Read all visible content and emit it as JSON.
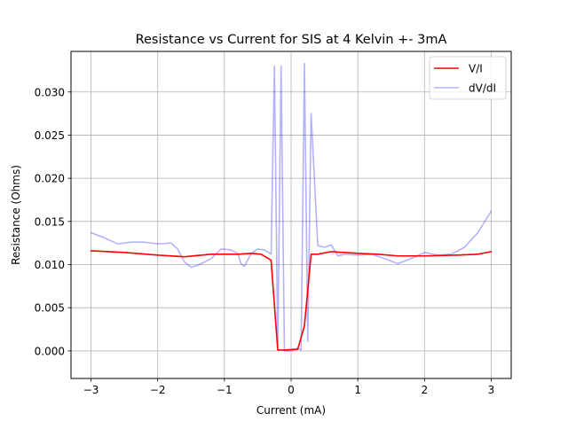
{
  "chart_data": {
    "type": "line",
    "title": "Resistance vs Current for SIS at 4 Kelvin +- 3mA",
    "xlabel": "Current (mA)",
    "ylabel": "Resistance (Ohms)",
    "xlim": [
      -3.3,
      3.3
    ],
    "ylim": [
      -0.0032,
      0.0347
    ],
    "xticks": [
      -3,
      -2,
      -1,
      0,
      1,
      2,
      3
    ],
    "xtick_labels": [
      "−3",
      "−2",
      "−1",
      "0",
      "1",
      "2",
      "3"
    ],
    "yticks": [
      0.0,
      0.005,
      0.01,
      0.015,
      0.02,
      0.025,
      0.03
    ],
    "ytick_labels": [
      "0.000",
      "0.005",
      "0.010",
      "0.015",
      "0.020",
      "0.025",
      "0.030"
    ],
    "grid": true,
    "legend_position": "top-right",
    "series": [
      {
        "name": "V/I",
        "color": "#ff0000",
        "alpha": 1.0,
        "x": [
          -3.0,
          -2.5,
          -2.0,
          -1.6,
          -1.2,
          -0.8,
          -0.6,
          -0.45,
          -0.3,
          -0.2,
          -0.1,
          0.1,
          0.2,
          0.3,
          0.4,
          0.6,
          0.8,
          1.0,
          1.3,
          1.6,
          2.0,
          2.5,
          2.8,
          3.0
        ],
        "y": [
          0.0116,
          0.0114,
          0.0111,
          0.0109,
          0.0112,
          0.0112,
          0.0113,
          0.0112,
          0.0105,
          0.0001,
          0.0001,
          0.0002,
          0.0029,
          0.0112,
          0.0112,
          0.0115,
          0.0114,
          0.0113,
          0.0112,
          0.011,
          0.011,
          0.0111,
          0.0112,
          0.0115
        ]
      },
      {
        "name": "dV/dI",
        "color": "#0000ff",
        "alpha": 0.3,
        "x": [
          -3.0,
          -2.8,
          -2.6,
          -2.4,
          -2.2,
          -2.0,
          -1.8,
          -1.7,
          -1.6,
          -1.5,
          -1.4,
          -1.2,
          -1.05,
          -0.9,
          -0.8,
          -0.75,
          -0.7,
          -0.6,
          -0.5,
          -0.4,
          -0.3,
          -0.25,
          -0.2,
          -0.15,
          -0.1,
          0.0,
          0.1,
          0.15,
          0.2,
          0.25,
          0.3,
          0.4,
          0.5,
          0.6,
          0.7,
          0.8,
          1.0,
          1.2,
          1.4,
          1.6,
          1.8,
          2.0,
          2.2,
          2.4,
          2.6,
          2.8,
          3.0
        ],
        "y": [
          0.0137,
          0.0131,
          0.0124,
          0.0126,
          0.0126,
          0.0124,
          0.0125,
          0.0118,
          0.0103,
          0.0097,
          0.0099,
          0.0107,
          0.0118,
          0.0117,
          0.0113,
          0.0101,
          0.0098,
          0.0113,
          0.0118,
          0.0117,
          0.0112,
          0.033,
          0.0002,
          0.033,
          0.0,
          0.0,
          0.0003,
          0.0001,
          0.0333,
          0.0011,
          0.0275,
          0.0122,
          0.012,
          0.0123,
          0.011,
          0.0112,
          0.0111,
          0.0112,
          0.0107,
          0.0101,
          0.0107,
          0.0114,
          0.0111,
          0.0112,
          0.012,
          0.0137,
          0.0162
        ]
      }
    ]
  }
}
